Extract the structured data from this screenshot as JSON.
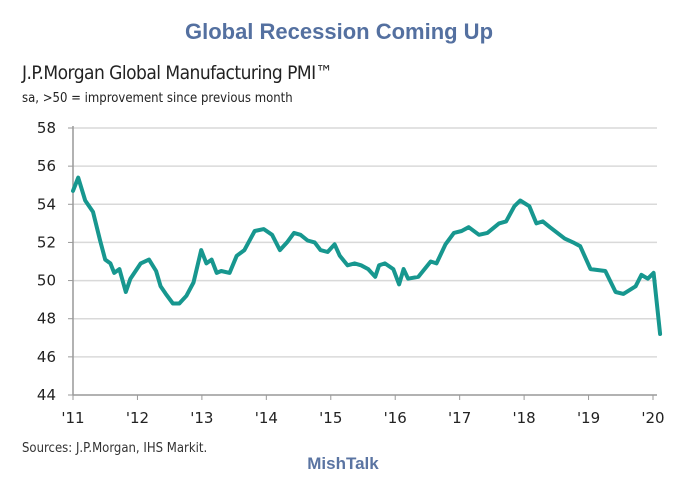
{
  "header": {
    "title": "Global Recession Coming Up"
  },
  "footer": {
    "brand": "MishTalk"
  },
  "chart_data": {
    "type": "line",
    "title": "J.P.Morgan Global Manufacturing PMI™",
    "subtitle": "sa, >50 = improvement since previous month",
    "source": "Sources: J.P.Morgan, IHS Markit.",
    "xlabel": "",
    "ylabel": "",
    "xlim": [
      2011,
      2020
    ],
    "ylim": [
      44,
      58
    ],
    "yticks": [
      44,
      46,
      48,
      50,
      52,
      54,
      56,
      58
    ],
    "xticks": [
      {
        "value": 2011,
        "label": "'11"
      },
      {
        "value": 2012,
        "label": "'12"
      },
      {
        "value": 2013,
        "label": "'13"
      },
      {
        "value": 2014,
        "label": "'14"
      },
      {
        "value": 2015,
        "label": "'15"
      },
      {
        "value": 2016,
        "label": "'16"
      },
      {
        "value": 2017,
        "label": "'17"
      },
      {
        "value": 2018,
        "label": "'18"
      },
      {
        "value": 2019,
        "label": "'19"
      },
      {
        "value": 2020,
        "label": "'20"
      }
    ],
    "grid": true,
    "color": "#17978f",
    "series": [
      {
        "name": "J.P.Morgan Global Manufacturing PMI",
        "x": [
          2011.0,
          2011.08,
          2011.19,
          2011.31,
          2011.42,
          2011.5,
          2011.58,
          2011.64,
          2011.72,
          2011.82,
          2011.89,
          2012.05,
          2012.18,
          2012.29,
          2012.36,
          2012.44,
          2012.55,
          2012.65,
          2012.76,
          2012.87,
          2012.99,
          2013.07,
          2013.15,
          2013.23,
          2013.3,
          2013.43,
          2013.54,
          2013.66,
          2013.82,
          2013.96,
          2014.09,
          2014.21,
          2014.32,
          2014.43,
          2014.53,
          2014.64,
          2014.75,
          2014.84,
          2014.95,
          2015.06,
          2015.14,
          2015.26,
          2015.37,
          2015.47,
          2015.58,
          2015.69,
          2015.75,
          2015.84,
          2015.97,
          2016.06,
          2016.13,
          2016.2,
          2016.36,
          2016.55,
          2016.64,
          2016.78,
          2016.91,
          2017.03,
          2017.14,
          2017.3,
          2017.43,
          2017.61,
          2017.72,
          2017.85,
          2017.94,
          2018.08,
          2018.19,
          2018.29,
          2018.4,
          2018.63,
          2018.76,
          2018.87,
          2019.03,
          2019.26,
          2019.42,
          2019.54,
          2019.73,
          2019.82,
          2019.92,
          2020.01,
          2020.11
        ],
        "y": [
          54.7,
          55.4,
          54.2,
          53.6,
          52.1,
          51.1,
          50.9,
          50.4,
          50.6,
          49.4,
          50.1,
          50.9,
          51.1,
          50.5,
          49.7,
          49.3,
          48.8,
          48.8,
          49.2,
          49.9,
          51.6,
          50.9,
          51.1,
          50.4,
          50.5,
          50.4,
          51.3,
          51.6,
          52.6,
          52.7,
          52.4,
          51.6,
          52.0,
          52.5,
          52.4,
          52.1,
          52.0,
          51.6,
          51.5,
          51.9,
          51.3,
          50.8,
          50.9,
          50.8,
          50.6,
          50.2,
          50.8,
          50.9,
          50.6,
          49.8,
          50.6,
          50.1,
          50.2,
          51.0,
          50.9,
          51.9,
          52.5,
          52.6,
          52.8,
          52.4,
          52.5,
          53.0,
          53.1,
          53.9,
          54.2,
          53.9,
          53.0,
          53.1,
          52.8,
          52.2,
          52.0,
          51.8,
          50.6,
          50.5,
          49.4,
          49.3,
          49.7,
          50.3,
          50.1,
          50.4,
          47.2
        ]
      }
    ]
  }
}
